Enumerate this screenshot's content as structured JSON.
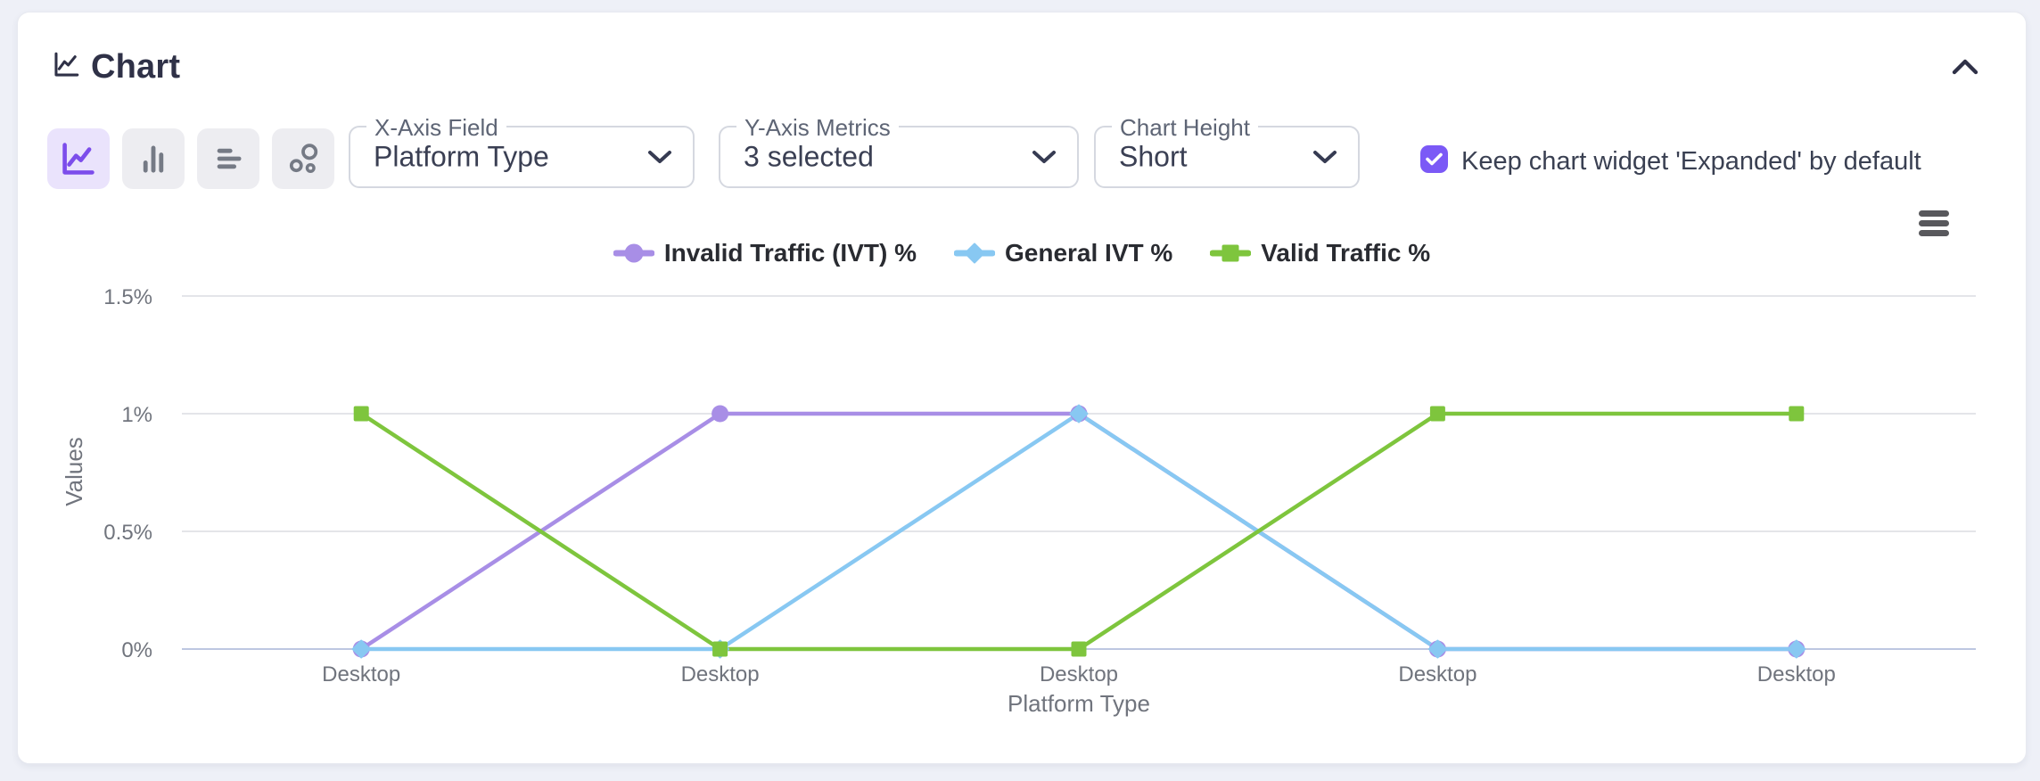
{
  "header": {
    "title": "Chart"
  },
  "toolbar": {
    "chart_type_buttons": [
      {
        "id": "line",
        "icon": "line-chart-icon",
        "active": true
      },
      {
        "id": "bar",
        "icon": "bar-chart-icon",
        "active": false
      },
      {
        "id": "horizontal-bar",
        "icon": "horizontal-bar-chart-icon",
        "active": false
      },
      {
        "id": "scatter",
        "icon": "scatter-chart-icon",
        "active": false
      }
    ],
    "selects": [
      {
        "label": "X-Axis Field",
        "value": "Platform Type"
      },
      {
        "label": "Y-Axis Metrics",
        "value": "3 selected"
      },
      {
        "label": "Chart Height",
        "value": "Short"
      }
    ],
    "expanded_checkbox": {
      "checked": true,
      "label": "Keep chart widget 'Expanded' by default"
    }
  },
  "colors": {
    "accent_purple": "#7C4DEB",
    "checkbox_purple": "#7B59F6",
    "button_gray_bg": "#EDEDF1",
    "button_active_bg": "#EAE3FC",
    "icon_gray": "#757A85",
    "grid_line": "#E4E5E9",
    "axis_line": "#BDC7E1",
    "tick_text": "#70747D",
    "legend_text": "#292B31"
  },
  "chart_data": {
    "type": "line",
    "categories": [
      "Desktop",
      "Desktop",
      "Desktop",
      "Desktop",
      "Desktop"
    ],
    "series": [
      {
        "name": "Invalid Traffic (IVT) %",
        "color": "#A88EE6",
        "marker": "circle",
        "values": [
          0,
          1,
          1,
          0,
          0
        ]
      },
      {
        "name": "General IVT %",
        "color": "#88C8F2",
        "marker": "diamond",
        "values": [
          0,
          0,
          1,
          0,
          0
        ]
      },
      {
        "name": "Valid Traffic %",
        "color": "#7EC53D",
        "marker": "square",
        "values": [
          1,
          0,
          0,
          1,
          1
        ]
      }
    ],
    "unit": "%",
    "xlabel": "Platform Type",
    "ylabel": "Values",
    "ylim": [
      0,
      1.5
    ],
    "yticks": [
      0,
      0.5,
      1,
      1.5
    ],
    "ytick_labels": [
      "0%",
      "0.5%",
      "1%",
      "1.5%"
    ],
    "grid": true,
    "legend_position": "top-center"
  }
}
